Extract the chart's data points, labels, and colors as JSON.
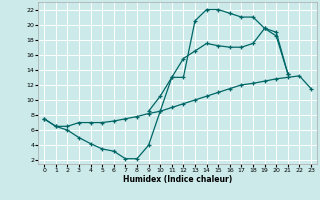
{
  "xlabel": "Humidex (Indice chaleur)",
  "bg_color": "#cceaea",
  "grid_color": "#ffffff",
  "line_color": "#006666",
  "xlim": [
    -0.5,
    23.5
  ],
  "ylim": [
    1.5,
    23.0
  ],
  "xticks": [
    0,
    1,
    2,
    3,
    4,
    5,
    6,
    7,
    8,
    9,
    10,
    11,
    12,
    13,
    14,
    15,
    16,
    17,
    18,
    19,
    20,
    21,
    22,
    23
  ],
  "yticks": [
    2,
    4,
    6,
    8,
    10,
    12,
    14,
    16,
    18,
    20,
    22
  ],
  "line1_x": [
    0,
    1,
    2,
    3,
    4,
    5,
    6,
    7,
    8,
    9,
    10,
    11,
    12,
    13,
    14,
    15,
    16,
    17,
    18,
    19,
    20,
    21
  ],
  "line1_y": [
    7.5,
    6.5,
    6.0,
    5.0,
    4.2,
    3.5,
    3.2,
    2.2,
    2.2,
    4.0,
    8.5,
    13.0,
    13.0,
    20.5,
    22.0,
    22.0,
    21.5,
    21.0,
    21.0,
    19.5,
    18.5,
    13.5
  ],
  "line2_x": [
    0,
    1,
    2,
    3,
    4,
    5,
    6,
    7,
    8,
    9,
    10,
    11,
    12,
    13,
    14,
    15,
    16,
    17,
    18,
    19,
    20,
    21,
    22,
    23
  ],
  "line2_y": [
    7.5,
    6.5,
    6.5,
    7.0,
    7.0,
    7.0,
    7.2,
    7.5,
    7.8,
    8.2,
    8.5,
    9.0,
    9.5,
    10.0,
    10.5,
    11.0,
    11.5,
    12.0,
    12.2,
    12.5,
    12.8,
    13.0,
    13.2,
    11.5
  ],
  "line3_x": [
    9,
    10,
    11,
    12,
    13,
    14,
    15,
    16,
    17,
    18,
    19,
    20,
    21
  ],
  "line3_y": [
    8.5,
    10.5,
    13.0,
    15.5,
    16.5,
    17.5,
    17.2,
    17.0,
    17.0,
    17.5,
    19.5,
    19.0,
    13.5
  ]
}
